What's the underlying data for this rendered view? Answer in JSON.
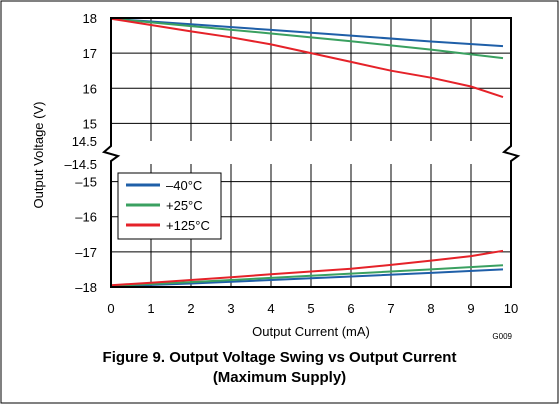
{
  "chart_data": {
    "type": "line",
    "title": "Figure 9. Output Voltage Swing vs Output Current",
    "subtitle": "(Maximum Supply)",
    "xlabel": "Output Current (mA)",
    "ylabel": "Output Voltage (V)",
    "code": "G009",
    "xlim": [
      0,
      10
    ],
    "x_ticks": [
      "0",
      "1",
      "2",
      "3",
      "4",
      "5",
      "6",
      "7",
      "8",
      "9",
      "10"
    ],
    "upper_axis": {
      "ylim": [
        14.5,
        18
      ],
      "ticks": [
        18,
        17,
        16,
        15,
        14.5
      ],
      "tick_labels": [
        "18",
        "17",
        "16",
        "15",
        "14.5"
      ]
    },
    "lower_axis": {
      "ylim": [
        -18,
        -14.5
      ],
      "ticks": [
        -14.5,
        -15,
        -16,
        -17,
        -18
      ],
      "tick_labels": [
        "–14.5",
        "–15",
        "–16",
        "–17",
        "–18"
      ]
    },
    "legend_position": "upper-left of lower panel",
    "grid": true,
    "series": [
      {
        "name": "–40°C",
        "color": "#1f5fa8",
        "x": [
          0,
          2,
          4,
          6,
          8,
          9.8
        ],
        "upper_y": [
          17.98,
          17.82,
          17.66,
          17.5,
          17.33,
          17.2
        ],
        "lower_y": [
          -17.98,
          -17.9,
          -17.8,
          -17.7,
          -17.6,
          -17.5
        ]
      },
      {
        "name": "+25°C",
        "color": "#3aa060",
        "x": [
          0,
          2,
          4,
          6,
          8,
          9.8
        ],
        "upper_y": [
          17.98,
          17.77,
          17.56,
          17.34,
          17.1,
          16.86
        ],
        "lower_y": [
          -17.97,
          -17.86,
          -17.74,
          -17.62,
          -17.5,
          -17.38
        ]
      },
      {
        "name": "+125°C",
        "color": "#e52229",
        "x": [
          0,
          1,
          2,
          3,
          4,
          5,
          6,
          7,
          8,
          9,
          9.8
        ],
        "upper_y": [
          17.98,
          17.8,
          17.62,
          17.45,
          17.25,
          17.0,
          16.75,
          16.5,
          16.3,
          16.05,
          15.75
        ],
        "lower_y": [
          -17.95,
          -17.88,
          -17.8,
          -17.72,
          -17.64,
          -17.56,
          -17.48,
          -17.37,
          -17.25,
          -17.12,
          -16.97
        ]
      }
    ]
  }
}
